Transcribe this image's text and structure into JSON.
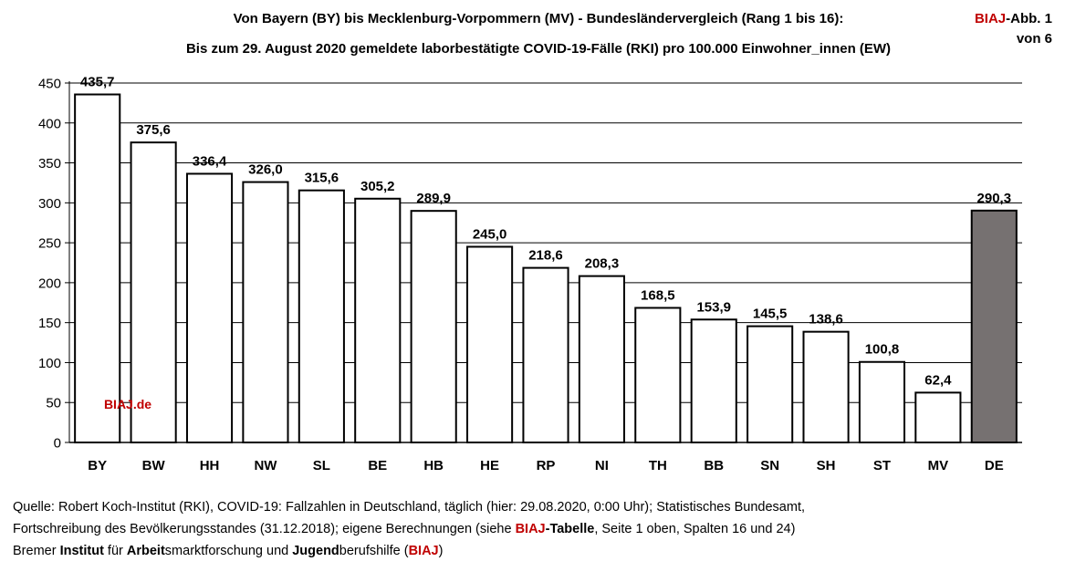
{
  "header": {
    "title_line1": "Von Bayern (BY) bis Mecklenburg-Vorpommern (MV)  - Bundesländervergleich (Rang 1 bis 16):",
    "title_line2": "Bis zum 29. August 2020 gemeldete laborbestätigte COVID-19-Fälle (RKI) pro 100.000 Einwohner_innen (EW)",
    "badge_brand": "BIAJ",
    "badge_rest": "-Abb. 1",
    "badge_line2": "von 6"
  },
  "watermark": "BIAJ.de",
  "chart_data": {
    "type": "bar",
    "title": "Bis zum 29. August 2020 gemeldete laborbestätigte COVID-19-Fälle (RKI) pro 100.000 Einwohner_innen (EW)",
    "xlabel": "",
    "ylabel": "",
    "ylim": [
      0,
      450
    ],
    "yticks": [
      0,
      50,
      100,
      150,
      200,
      250,
      300,
      350,
      400,
      450
    ],
    "grid": true,
    "categories": [
      "BY",
      "BW",
      "HH",
      "NW",
      "SL",
      "BE",
      "HB",
      "HE",
      "RP",
      "NI",
      "TH",
      "BB",
      "SN",
      "SH",
      "ST",
      "MV",
      "DE"
    ],
    "values": [
      435.7,
      375.6,
      336.4,
      326.0,
      315.6,
      305.2,
      289.9,
      245.0,
      218.6,
      208.3,
      168.5,
      153.9,
      145.5,
      138.6,
      100.8,
      62.4,
      290.3
    ],
    "value_labels": [
      "435,7",
      "375,6",
      "336,4",
      "326,0",
      "315,6",
      "305,2",
      "289,9",
      "245,0",
      "218,6",
      "208,3",
      "168,5",
      "153,9",
      "145,5",
      "138,6",
      "100,8",
      "62,4",
      "290,3"
    ],
    "bar_color": "#ffffff",
    "highlight_category": "DE",
    "highlight_color": "#767171"
  },
  "footer": {
    "line1": "Quelle: Robert Koch-Institut (RKI), COVID-19: Fallzahlen in Deutschland, täglich (hier: 29.08.2020, 0:00 Uhr); Statistisches Bundesamt,",
    "line2_a": "Fortschreibung des Bevölkerungsstandes (31.12.2018); eigene Berechnungen (siehe ",
    "line2_brand": "BIAJ",
    "line2_b": "-Tabelle",
    "line2_c": ", Seite 1 oben, Spalten 16 und 24)",
    "line3_a": "Bremer ",
    "line3_b": "Institut",
    "line3_c": " für ",
    "line3_d": "Arbeit",
    "line3_e": "smarktforschung und ",
    "line3_f": "Jugend",
    "line3_g": "berufshilfe (",
    "line3_brand": "BIAJ",
    "line3_h": ")"
  }
}
